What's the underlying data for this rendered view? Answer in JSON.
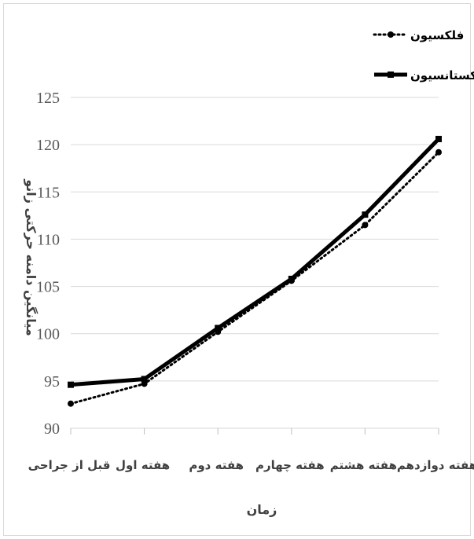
{
  "chart_data": {
    "type": "line",
    "categories": [
      "قبل از جراحی",
      "هفته اول",
      "هفته دوم",
      "هفته چهارم",
      "هفته هشتم",
      "هفته دوازدهم"
    ],
    "series": [
      {
        "name": "فلکسیون",
        "values": [
          92.6,
          94.7,
          100.2,
          105.6,
          111.5,
          119.2
        ],
        "style": "dotted",
        "marker": "circle",
        "color": "#000000"
      },
      {
        "name": "اکستانسیون",
        "values": [
          94.6,
          95.2,
          100.6,
          105.8,
          112.6,
          120.6
        ],
        "style": "solid",
        "marker": "square",
        "color": "#000000"
      }
    ],
    "xlabel": "زمان",
    "ylabel": "میانگین دامنه حرکتی زانو",
    "ylim": [
      90,
      125
    ],
    "yticks": [
      90,
      95,
      100,
      105,
      110,
      115,
      120,
      125
    ],
    "grid": true,
    "legend_position": "top-right"
  }
}
